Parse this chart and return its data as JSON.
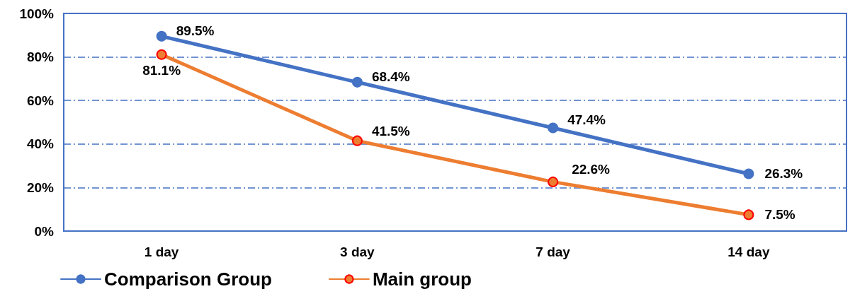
{
  "chart_data": {
    "type": "line",
    "categories": [
      "1 day",
      "3 day",
      "7 day",
      "14 day"
    ],
    "series": [
      {
        "name": "Comparison Group",
        "color": "#4472c4",
        "values": [
          89.5,
          68.4,
          47.4,
          26.3
        ],
        "value_labels": [
          "89.5%",
          "68.4%",
          "47.4%",
          "26.3%"
        ]
      },
      {
        "name": "Main group",
        "color": "#ed7d31",
        "values": [
          81.1,
          41.5,
          22.6,
          7.5
        ],
        "value_labels": [
          "81.1%",
          "41.5%",
          "22.6%",
          "7.5%"
        ]
      }
    ],
    "ylim": [
      0,
      100
    ],
    "yticks": [
      {
        "value": 0,
        "label": "0%"
      },
      {
        "value": 20,
        "label": "20%"
      },
      {
        "value": 40,
        "label": "40%"
      },
      {
        "value": 60,
        "label": "60%"
      },
      {
        "value": 80,
        "label": "80%"
      },
      {
        "value": 100,
        "label": "100%"
      }
    ],
    "grid": "y",
    "legend": "bottom left",
    "marker": "circle",
    "line_style": "solid"
  }
}
